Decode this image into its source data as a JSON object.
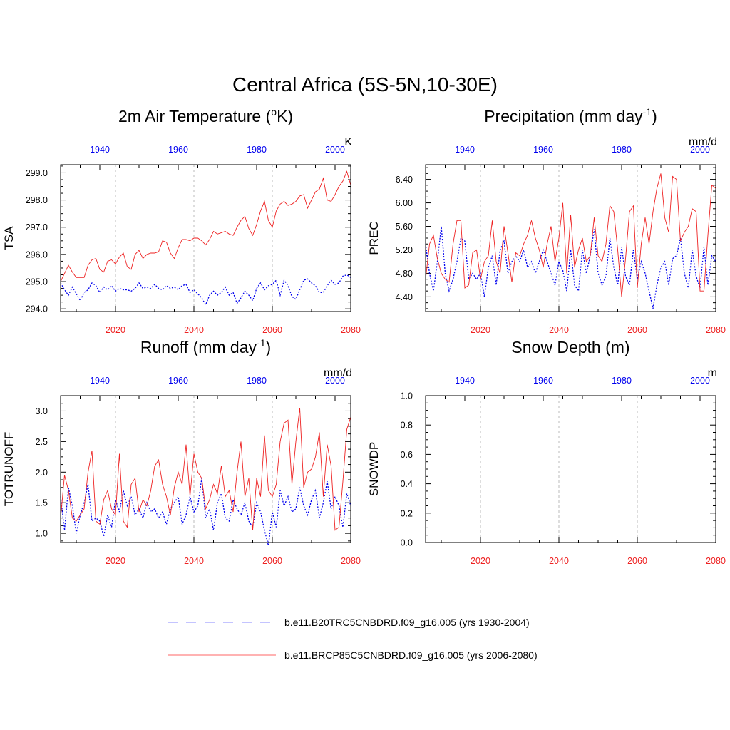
{
  "title": "Central Africa (5S-5N,10-30E)",
  "colors": {
    "historical": "#0000ee",
    "future": "#ee2222",
    "grid": "#bbbbbb",
    "axis": "#000000"
  },
  "legend": [
    {
      "label": "b.e11.B20TRC5CNBDRD.f09_g16.005 (yrs 1930-2004)",
      "style": "dashed",
      "color": "#8888ff"
    },
    {
      "label": "b.e11.BRCP85C5CNBDRD.f09_g16.005 (yrs 2006-2080)",
      "style": "solid",
      "color": "#ff6666"
    }
  ],
  "chart_data": [
    {
      "type": "line",
      "title": "2m Air Temperature (oK)",
      "title_parts": [
        "2m Air Temperature (",
        "o",
        "K)"
      ],
      "units": "K",
      "ylabel": "TSA",
      "xlim_bottom": [
        2006,
        2080
      ],
      "xlim_top": [
        1930,
        2004
      ],
      "ylim": [
        293.9,
        299.3
      ],
      "yticks": [
        294.0,
        295.0,
        296.0,
        297.0,
        298.0,
        299.0
      ],
      "ytick_labels": [
        "294.0",
        "295.0",
        "296.0",
        "297.0",
        "298.0",
        "299.0"
      ],
      "xticks_bottom": [
        "2020",
        "2040",
        "2060",
        "2080"
      ],
      "xticks_top": [
        "1940",
        "1960",
        "1980",
        "2000"
      ],
      "series": [
        {
          "name": "b.e11.B20TRC5CNBDRD.f09_g16.005 (yrs 1930-2004)",
          "style": "dotted",
          "values": [
            294.95,
            294.7,
            294.5,
            294.8,
            294.55,
            294.3,
            294.6,
            294.7,
            294.95,
            294.85,
            294.6,
            294.8,
            294.7,
            294.85,
            294.65,
            294.75,
            294.7,
            294.7,
            294.65,
            294.75,
            294.95,
            294.75,
            294.8,
            294.75,
            294.9,
            294.75,
            294.7,
            294.85,
            294.75,
            294.8,
            294.7,
            294.85,
            294.9,
            294.6,
            294.7,
            294.55,
            294.4,
            294.15,
            294.5,
            294.65,
            294.5,
            294.6,
            294.8,
            294.5,
            294.6,
            294.2,
            294.4,
            294.65,
            294.5,
            294.3,
            294.75,
            294.95,
            294.7,
            294.85,
            294.9,
            295.05,
            294.5,
            295.05,
            294.85,
            294.45,
            294.35,
            294.7,
            295.05,
            295.1,
            294.95,
            294.85,
            294.6,
            294.6,
            294.85,
            295.05,
            294.9,
            294.95,
            295.2,
            295.25,
            295.15
          ]
        },
        {
          "name": "b.e11.BRCP85C5CNBDRD.f09_g16.005 (yrs 2006-2080)",
          "style": "solid",
          "values": [
            295.0,
            295.3,
            295.6,
            295.35,
            295.15,
            295.15,
            295.15,
            295.6,
            295.8,
            295.85,
            295.45,
            295.35,
            295.75,
            295.8,
            295.65,
            295.9,
            296.05,
            295.55,
            295.45,
            296.0,
            296.15,
            295.85,
            296.0,
            296.05,
            296.05,
            296.1,
            296.5,
            296.45,
            296.05,
            295.85,
            296.25,
            296.55,
            296.55,
            296.5,
            296.6,
            296.6,
            296.5,
            296.35,
            296.55,
            296.85,
            296.75,
            296.8,
            296.85,
            296.75,
            296.7,
            297.0,
            297.25,
            297.4,
            296.95,
            296.7,
            297.1,
            297.6,
            297.95,
            297.25,
            297.0,
            297.6,
            297.85,
            297.95,
            297.8,
            297.85,
            297.95,
            298.15,
            298.2,
            297.7,
            298.0,
            298.3,
            298.4,
            298.8,
            298.0,
            297.95,
            298.2,
            298.5,
            298.7,
            299.05,
            298.55
          ]
        }
      ]
    },
    {
      "type": "line",
      "title": "Precipitation (mm day-1)",
      "title_parts": [
        "Precipitation (mm day",
        "-1",
        ")"
      ],
      "units": "mm/d",
      "ylabel": "PREC",
      "xlim_bottom": [
        2006,
        2080
      ],
      "xlim_top": [
        1930,
        2004
      ],
      "ylim": [
        4.15,
        6.65
      ],
      "yticks": [
        4.4,
        4.8,
        5.2,
        5.6,
        6.0,
        6.4
      ],
      "ytick_labels": [
        "4.40",
        "4.80",
        "5.20",
        "5.60",
        "6.00",
        "6.40"
      ],
      "xticks_bottom": [
        "2020",
        "2040",
        "2060",
        "2080"
      ],
      "xticks_top": [
        "1940",
        "1960",
        "1980",
        "2000"
      ],
      "series": [
        {
          "name": "b.e11.B20TRC5CNBDRD.f09_g16.005 (yrs 1930-2004)",
          "style": "dotted",
          "values": [
            5.3,
            4.8,
            4.5,
            5.0,
            5.6,
            4.8,
            4.5,
            4.7,
            5.0,
            5.4,
            5.35,
            4.7,
            4.8,
            4.7,
            4.8,
            4.4,
            4.9,
            5.1,
            4.6,
            5.2,
            5.35,
            4.8,
            5.0,
            5.1,
            5.0,
            5.2,
            4.9,
            5.0,
            4.8,
            5.0,
            5.2,
            5.0,
            4.8,
            4.6,
            5.0,
            4.85,
            4.5,
            5.2,
            4.6,
            4.5,
            5.2,
            4.8,
            5.1,
            5.55,
            4.8,
            4.6,
            4.75,
            5.4,
            4.9,
            4.6,
            5.25,
            4.75,
            4.6,
            5.2,
            4.7,
            5.0,
            4.8,
            4.5,
            4.2,
            4.6,
            4.9,
            5.0,
            4.6,
            5.05,
            5.1,
            5.4,
            4.8,
            4.55,
            5.2,
            4.75,
            4.55,
            5.25,
            4.6,
            5.1,
            5.0
          ]
        },
        {
          "name": "b.e11.BRCP85C5CNBDRD.f09_g16.005 (yrs 2006-2080)",
          "style": "solid",
          "values": [
            4.7,
            5.3,
            5.45,
            5.05,
            4.8,
            4.7,
            4.65,
            5.3,
            5.7,
            5.7,
            4.55,
            4.6,
            5.15,
            5.2,
            4.7,
            5.0,
            5.1,
            5.7,
            5.0,
            4.8,
            5.6,
            5.15,
            4.65,
            5.15,
            5.1,
            5.3,
            5.45,
            5.7,
            5.4,
            5.2,
            4.9,
            5.3,
            5.6,
            5.0,
            5.4,
            6.0,
            4.8,
            5.8,
            4.9,
            5.2,
            5.4,
            5.0,
            5.1,
            5.75,
            5.1,
            5.0,
            5.3,
            5.95,
            5.85,
            5.2,
            4.4,
            5.05,
            5.85,
            5.95,
            4.55,
            5.3,
            5.75,
            5.3,
            5.85,
            6.25,
            6.5,
            5.75,
            5.5,
            6.45,
            6.4,
            5.35,
            5.5,
            5.6,
            5.9,
            5.85,
            4.5,
            4.5,
            5.45,
            6.3,
            6.25
          ]
        }
      ]
    },
    {
      "type": "line",
      "title": "Runoff (mm day-1)",
      "title_parts": [
        "Runoff (mm day",
        "-1",
        ")"
      ],
      "units": "mm/d",
      "ylabel": "TOTRUNOFF",
      "xlim_bottom": [
        2006,
        2080
      ],
      "xlim_top": [
        1930,
        2004
      ],
      "ylim": [
        0.85,
        3.25
      ],
      "yticks": [
        1.0,
        1.5,
        2.0,
        2.5,
        3.0
      ],
      "ytick_labels": [
        "1.0",
        "1.5",
        "2.0",
        "2.5",
        "3.0"
      ],
      "xticks_bottom": [
        "2020",
        "2040",
        "2060",
        "2080"
      ],
      "xticks_top": [
        "1940",
        "1960",
        "1980",
        "2000"
      ],
      "series": [
        {
          "name": "b.e11.B20TRC5CNBDRD.f09_g16.005 (yrs 1930-2004)",
          "style": "dotted",
          "values": [
            1.6,
            1.05,
            1.75,
            1.45,
            1.0,
            1.3,
            1.5,
            1.8,
            1.2,
            1.25,
            1.2,
            0.95,
            1.3,
            1.1,
            1.55,
            1.35,
            1.7,
            1.45,
            1.6,
            1.3,
            1.4,
            1.25,
            1.5,
            1.35,
            1.4,
            1.25,
            1.35,
            1.15,
            1.4,
            1.5,
            1.6,
            1.15,
            1.3,
            1.6,
            1.35,
            1.45,
            1.9,
            1.25,
            1.4,
            1.05,
            1.5,
            1.65,
            1.25,
            1.2,
            1.55,
            1.4,
            1.3,
            1.5,
            1.2,
            1.1,
            1.5,
            1.35,
            1.05,
            0.8,
            1.35,
            1.1,
            1.7,
            1.45,
            1.6,
            1.35,
            1.4,
            1.75,
            1.45,
            1.3,
            1.55,
            1.7,
            1.25,
            1.5,
            1.85,
            1.4,
            1.6,
            1.45,
            1.1,
            1.65,
            1.45
          ]
        },
        {
          "name": "b.e11.BRCP85C5CNBDRD.f09_g16.005 (yrs 2006-2080)",
          "style": "solid",
          "values": [
            1.25,
            1.95,
            1.7,
            1.25,
            1.2,
            1.3,
            1.4,
            2.0,
            2.35,
            1.2,
            1.15,
            1.55,
            1.7,
            1.4,
            1.3,
            2.3,
            1.2,
            1.1,
            1.8,
            1.9,
            1.35,
            1.55,
            1.45,
            1.7,
            2.1,
            2.2,
            1.8,
            1.6,
            1.3,
            1.75,
            2.0,
            1.8,
            2.45,
            1.6,
            2.3,
            2.0,
            1.9,
            1.4,
            1.55,
            1.8,
            1.65,
            2.1,
            1.6,
            1.7,
            1.35,
            2.0,
            2.5,
            1.6,
            1.9,
            1.05,
            1.9,
            1.6,
            2.6,
            1.7,
            1.6,
            1.8,
            2.5,
            2.8,
            2.85,
            1.8,
            2.5,
            3.05,
            1.75,
            2.0,
            2.05,
            2.25,
            2.65,
            1.6,
            2.45,
            2.1,
            1.05,
            1.1,
            1.85,
            2.7,
            2.9
          ]
        }
      ]
    },
    {
      "type": "line",
      "title": "Snow Depth (m)",
      "title_parts": [
        "Snow Depth (m)",
        "",
        ""
      ],
      "units": "m",
      "ylabel": "SNOWDP",
      "xlim_bottom": [
        2006,
        2080
      ],
      "xlim_top": [
        1930,
        2004
      ],
      "ylim": [
        0.0,
        1.0
      ],
      "yticks": [
        0.0,
        0.2,
        0.4,
        0.6,
        0.8,
        1.0
      ],
      "ytick_labels": [
        "0.0",
        "0.2",
        "0.4",
        "0.6",
        "0.8",
        "1.0"
      ],
      "xticks_bottom": [
        "2020",
        "2040",
        "2060",
        "2080"
      ],
      "xticks_top": [
        "1940",
        "1960",
        "1980",
        "2000"
      ],
      "series": []
    }
  ]
}
